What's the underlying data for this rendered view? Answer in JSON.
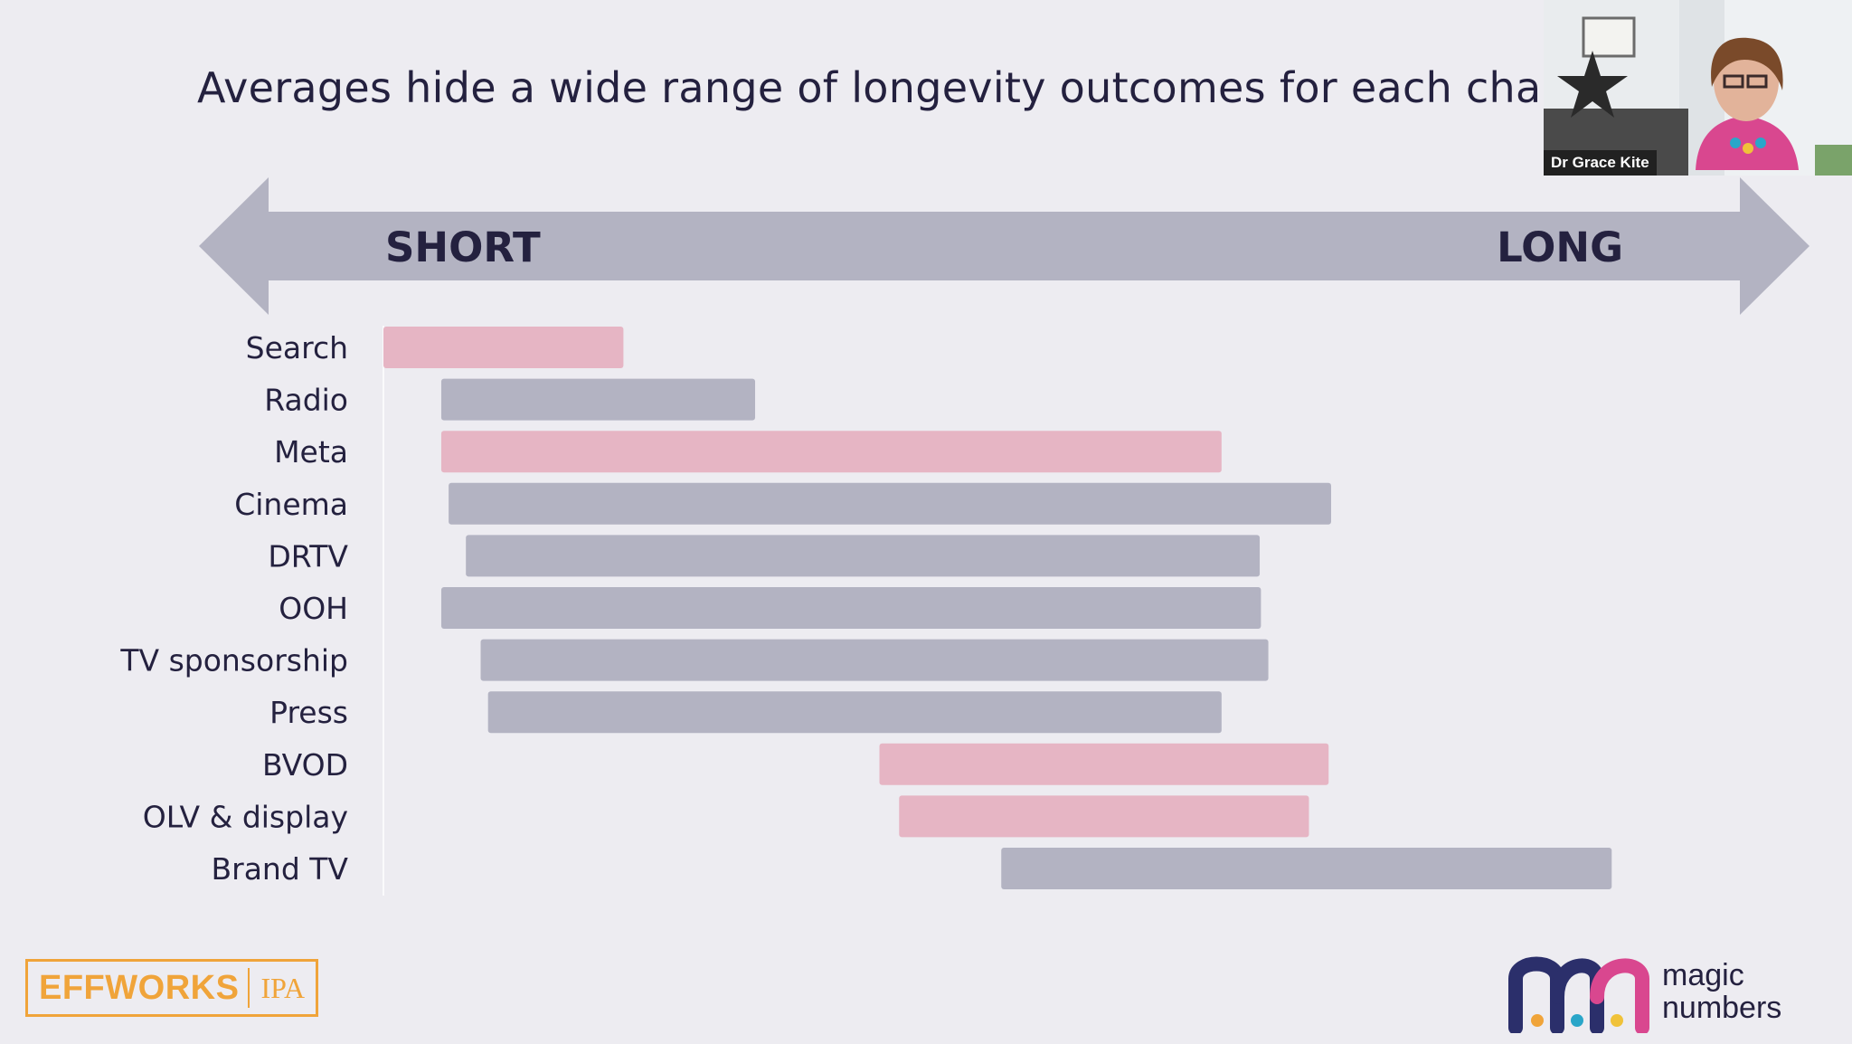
{
  "title": "Averages hide a wide range of longevity outcomes for each cha",
  "presenter": {
    "name": "Dr Grace Kite"
  },
  "logos": {
    "left_main": "EFFWORKS",
    "left_sub": "IPA",
    "right": "magic numbers"
  },
  "colors": {
    "background": "#edecf1",
    "arrow": "#b3b3c2",
    "bar_grey": "#b3b3c2",
    "bar_pink": "#e6b5c4",
    "text_dark": "#24213f",
    "logo_orange": "#f0a43a"
  },
  "chart_data": {
    "type": "bar",
    "orientation": "horizontal-range",
    "axis": {
      "start_label": "SHORT",
      "end_label": "LONG",
      "range": [
        0,
        100
      ],
      "grid": false
    },
    "categories": [
      "Search",
      "Radio",
      "Meta",
      "Cinema",
      "DRTV",
      "OOH",
      "TV sponsorship",
      "Press",
      "BVOD",
      "OLV & display",
      "Brand TV"
    ],
    "ranges": [
      {
        "category": "Search",
        "start": 0,
        "end": 19.5,
        "color": "pink"
      },
      {
        "category": "Radio",
        "start": 4.7,
        "end": 30.2,
        "color": "grey"
      },
      {
        "category": "Meta",
        "start": 4.7,
        "end": 68.1,
        "color": "pink"
      },
      {
        "category": "Cinema",
        "start": 5.3,
        "end": 77.0,
        "color": "grey"
      },
      {
        "category": "DRTV",
        "start": 6.7,
        "end": 71.2,
        "color": "grey"
      },
      {
        "category": "OOH",
        "start": 4.7,
        "end": 71.3,
        "color": "grey"
      },
      {
        "category": "TV sponsorship",
        "start": 7.9,
        "end": 71.9,
        "color": "grey"
      },
      {
        "category": "Press",
        "start": 8.5,
        "end": 68.1,
        "color": "grey"
      },
      {
        "category": "BVOD",
        "start": 40.3,
        "end": 76.8,
        "color": "pink"
      },
      {
        "category": "OLV & display",
        "start": 41.9,
        "end": 75.2,
        "color": "pink"
      },
      {
        "category": "Brand TV",
        "start": 50.2,
        "end": 99.8,
        "color": "grey"
      }
    ]
  }
}
